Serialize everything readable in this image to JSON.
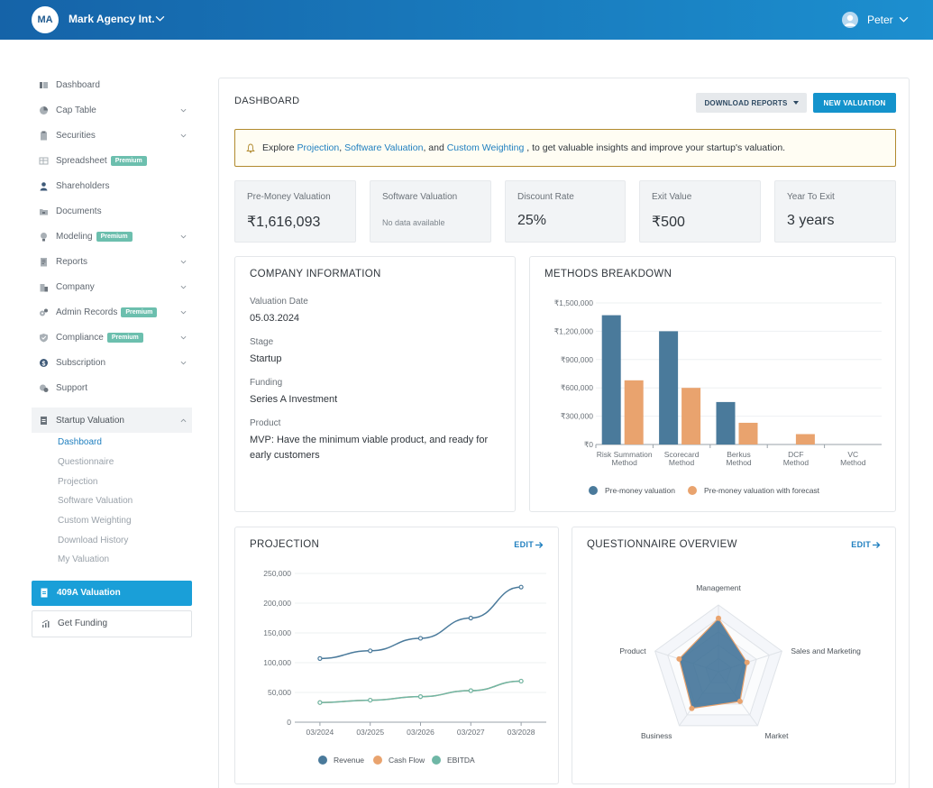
{
  "topbar": {
    "org_initials": "MA",
    "org_name": "Mark Agency Int.",
    "user_name": "Peter",
    "brand_color": "#1563a8"
  },
  "sidebar": {
    "items": [
      {
        "label": "Dashboard",
        "icon": "dashboard-icon",
        "premium": false,
        "expandable": false
      },
      {
        "label": "Cap Table",
        "icon": "pie-chart-icon",
        "premium": false,
        "expandable": true
      },
      {
        "label": "Securities",
        "icon": "clipboard-icon",
        "premium": false,
        "expandable": true
      },
      {
        "label": "Spreadsheet",
        "icon": "table-icon",
        "premium": true,
        "expandable": false
      },
      {
        "label": "Shareholders",
        "icon": "user-icon",
        "premium": false,
        "expandable": false
      },
      {
        "label": "Documents",
        "icon": "folder-icon",
        "premium": false,
        "expandable": false
      },
      {
        "label": "Modeling",
        "icon": "lightbulb-icon",
        "premium": true,
        "expandable": true
      },
      {
        "label": "Reports",
        "icon": "report-icon",
        "premium": false,
        "expandable": true
      },
      {
        "label": "Company",
        "icon": "building-icon",
        "premium": false,
        "expandable": true
      },
      {
        "label": "Admin Records",
        "icon": "gears-icon",
        "premium": true,
        "expandable": true
      },
      {
        "label": "Compliance",
        "icon": "shield-icon",
        "premium": true,
        "expandable": true
      },
      {
        "label": "Subscription",
        "icon": "dollar-icon",
        "premium": false,
        "expandable": true
      },
      {
        "label": "Support",
        "icon": "support-icon",
        "premium": false,
        "expandable": false
      }
    ],
    "premium_label": "Premium",
    "startup_valuation": {
      "label": "Startup Valuation",
      "icon": "document-icon",
      "subitems": [
        "Dashboard",
        "Questionnaire",
        "Projection",
        "Software Valuation",
        "Custom Weighting",
        "Download History",
        "My Valuation"
      ],
      "active_index": 0
    },
    "btn_409a": "409A Valuation",
    "btn_funding": "Get Funding"
  },
  "main": {
    "title": "DASHBOARD",
    "download_label": "DOWNLOAD REPORTS",
    "new_valuation_label": "NEW VALUATION",
    "alert": {
      "prefix": "Explore",
      "link1": "Projection",
      "sep1": " ,",
      "link2": "Software Valuation",
      "sep2": ", and",
      "link3": "Custom Weighting",
      "suffix": " , to get valuable insights and improve your startup's valuation."
    },
    "kpis": [
      {
        "label": "Pre-Money Valuation",
        "value": "₹1,616,093"
      },
      {
        "label": "Software Valuation",
        "value": "No data available",
        "empty": true
      },
      {
        "label": "Discount Rate",
        "value": "25%"
      },
      {
        "label": "Exit Value",
        "value": "₹500"
      },
      {
        "label": "Year To Exit",
        "value": "3 years"
      }
    ],
    "company_info": {
      "title": "COMPANY INFORMATION",
      "fields": [
        {
          "label": "Valuation Date",
          "value": "05.03.2024"
        },
        {
          "label": "Stage",
          "value": "Startup"
        },
        {
          "label": "Funding",
          "value": "Series A Investment"
        },
        {
          "label": "Product",
          "value": "MVP: Have the minimum viable product, and ready for early customers"
        }
      ]
    },
    "methods": {
      "title": "METHODS BREAKDOWN"
    },
    "projection": {
      "title": "PROJECTION",
      "edit_label": "EDIT"
    },
    "questionnaire": {
      "title": "QUESTIONNAIRE OVERVIEW",
      "edit_label": "EDIT"
    }
  },
  "chart_data": [
    {
      "type": "bar",
      "title": "METHODS BREAKDOWN",
      "categories": [
        "Risk Summation Method",
        "Scorecard Method",
        "Berkus Method",
        "DCF Method",
        "VC Method"
      ],
      "series": [
        {
          "name": "Pre-money valuation",
          "color": "#4a7a9b",
          "values": [
            1370000,
            1200000,
            450000,
            0,
            0
          ]
        },
        {
          "name": "Pre-money valuation with forecast",
          "color": "#e9a36e",
          "values": [
            680000,
            600000,
            230000,
            110000,
            0
          ]
        }
      ],
      "yticks": [
        "₹0",
        "₹300,000",
        "₹600,000",
        "₹900,000",
        "₹1,200,000",
        "₹1,500,000"
      ],
      "ylim": [
        0,
        1500000
      ],
      "legend": "bottom"
    },
    {
      "type": "line",
      "title": "PROJECTION",
      "x": [
        "03/2024",
        "03/2025",
        "03/2026",
        "03/2027",
        "03/2028"
      ],
      "series": [
        {
          "name": "Revenue",
          "color": "#4a7a9b",
          "values": [
            107000,
            120000,
            141000,
            175000,
            227000
          ]
        },
        {
          "name": "Cash Flow",
          "color": "#e9a36e",
          "values": [
            33000,
            37000,
            43000,
            53000,
            69000
          ]
        },
        {
          "name": "EBITDA",
          "color": "#6fb7a6",
          "values": [
            33000,
            37000,
            43000,
            53000,
            69000
          ]
        }
      ],
      "yticks": [
        "0",
        "50,000",
        "100,000",
        "150,000",
        "200,000",
        "250,000"
      ],
      "ylim": [
        0,
        250000
      ],
      "legend": "bottom"
    },
    {
      "type": "radar",
      "title": "QUESTIONNAIRE OVERVIEW",
      "axes": [
        "Management",
        "Sales and Marketing",
        "Market",
        "Business",
        "Product"
      ],
      "values": [
        0.8,
        0.45,
        0.55,
        0.68,
        0.62
      ],
      "max": 1,
      "rings": 5,
      "fill_color": "#3f7196",
      "point_color": "#e9a36e"
    }
  ]
}
